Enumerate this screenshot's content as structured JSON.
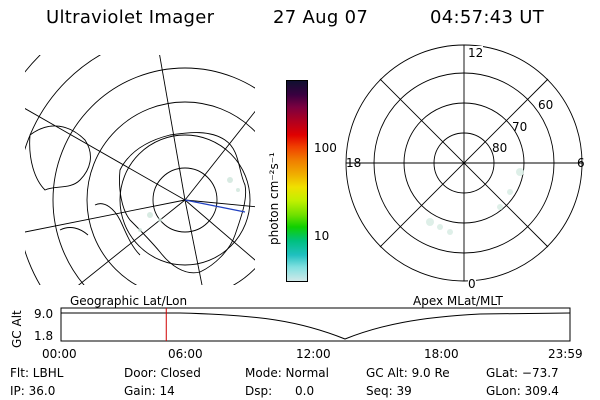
{
  "header": {
    "instrument": "Ultraviolet Imager",
    "date": "27 Aug 07",
    "time": "04:57:43 UT"
  },
  "colorbar": {
    "unit_label": "photon cm⁻²s⁻¹",
    "ticks": [
      "100",
      "10"
    ],
    "colors": [
      "#101030",
      "#3a0040",
      "#7a0040",
      "#b00020",
      "#e00000",
      "#f04000",
      "#f08000",
      "#f0b000",
      "#f0e000",
      "#c0f000",
      "#70e000",
      "#10d000",
      "#00c080",
      "#20c0c0",
      "#80e0e0",
      "#d0e8e8"
    ]
  },
  "polar_plot": {
    "mlt_labels": {
      "top": "12",
      "left": "18",
      "right": "6",
      "bottom": "0"
    },
    "lat_labels": [
      "60",
      "70",
      "80"
    ]
  },
  "map_labels": {
    "left": "Geographic Lat/Lon",
    "right": "Apex MLat/MLT"
  },
  "timeline": {
    "axis_label": "GC Alt",
    "y_ticks": [
      "9.0",
      "1.8"
    ],
    "x_ticks": [
      "00:00",
      "06:00",
      "12:00",
      "18:00",
      "23:59"
    ],
    "current_time_fraction": 0.2068
  },
  "status": {
    "filter": "Flt: LBHL",
    "ip": "IP: 36.0",
    "door": "Door: Closed",
    "gain": "Gain: 14",
    "mode": "Mode: Normal",
    "dsp": "Dsp:      0.0",
    "gc_alt": "GC Alt: 9.0 Re",
    "seq": "Seq: 39",
    "glat": "GLat: −73.7",
    "glon": "GLon: 309.4"
  }
}
